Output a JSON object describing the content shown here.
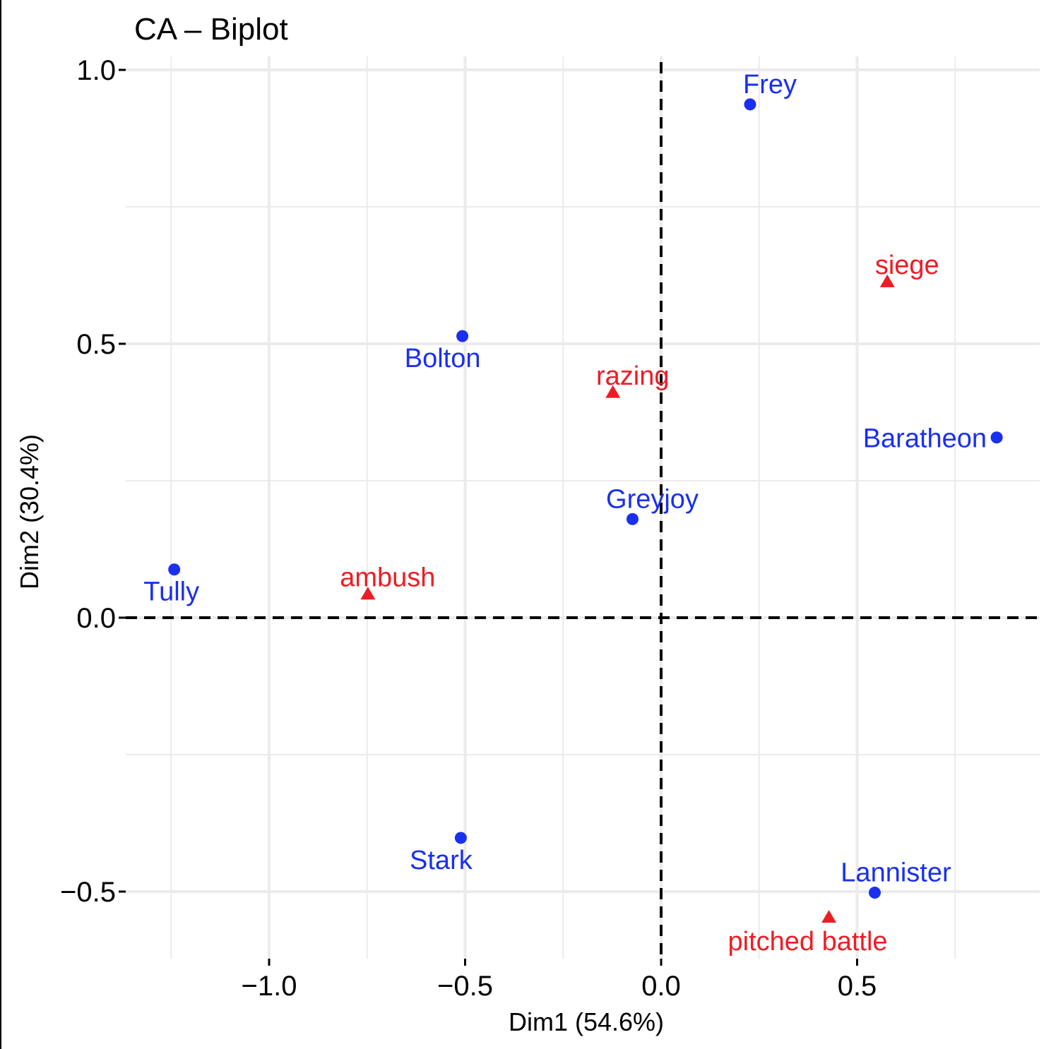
{
  "chart_data": {
    "type": "scatter",
    "title": "CA – Biplot",
    "xlabel": "Dim1 (54.6%)",
    "ylabel": "Dim2 (30.4%)",
    "xlim": [
      -1.25,
      0.95
    ],
    "ylim": [
      -0.62,
      1.02
    ],
    "xticks": [
      -1.0,
      -0.5,
      0.0,
      0.5
    ],
    "xtick_labels": [
      "−1.0",
      "−0.5",
      "0.0",
      "0.5"
    ],
    "yticks": [
      1.0,
      0.5,
      0.0,
      -0.5
    ],
    "ytick_labels": [
      "1.0",
      "0.5",
      "0.0",
      "−0.5"
    ],
    "grid": true,
    "reference_lines": {
      "x": 0,
      "y": 0,
      "style": "dashed"
    },
    "colors": {
      "rows": "#1a2ff0",
      "columns": "#ee1c25"
    },
    "series": [
      {
        "marker": "circle",
        "color": "#1a2ff0",
        "points": [
          {
            "label": "Frey",
            "x": 0.227,
            "y": 0.937
          },
          {
            "label": "Bolton",
            "x": -0.507,
            "y": 0.514
          },
          {
            "label": "Baratheon",
            "x": 0.856,
            "y": 0.329
          },
          {
            "label": "Greyjoy",
            "x": -0.073,
            "y": 0.18
          },
          {
            "label": "Tully",
            "x": -1.242,
            "y": 0.088
          },
          {
            "label": "Stark",
            "x": -0.511,
            "y": -0.402
          },
          {
            "label": "Lannister",
            "x": 0.545,
            "y": -0.502
          }
        ]
      },
      {
        "marker": "triangle",
        "color": "#ee1c25",
        "points": [
          {
            "label": "siege",
            "x": 0.577,
            "y": 0.612
          },
          {
            "label": "razing",
            "x": -0.123,
            "y": 0.41
          },
          {
            "label": "ambush",
            "x": -0.748,
            "y": 0.042
          },
          {
            "label": "pitched battle",
            "x": 0.428,
            "y": -0.548
          }
        ]
      }
    ]
  }
}
